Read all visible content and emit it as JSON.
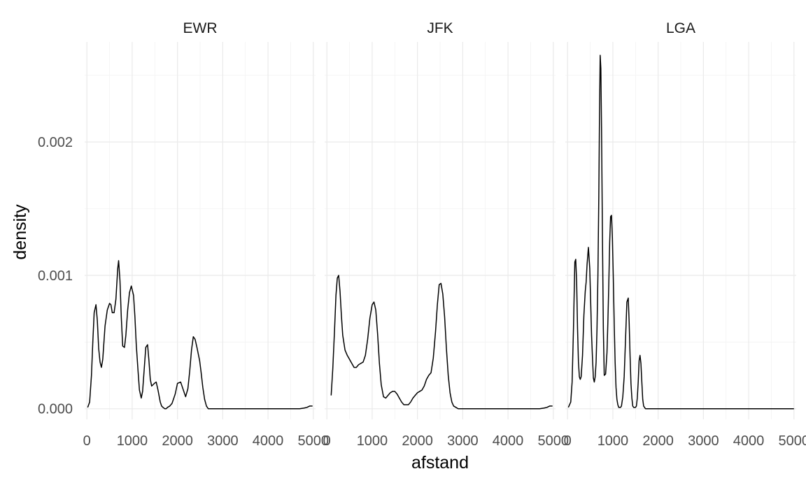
{
  "chart_data": {
    "type": "line",
    "xlabel": "afstand",
    "ylabel": "density",
    "xlim": [
      -50,
      5050
    ],
    "ylim": [
      -8e-05,
      0.00275
    ],
    "x_ticks": [
      0,
      1000,
      2000,
      3000,
      4000,
      5000
    ],
    "x_tick_labels": [
      "0",
      "1000",
      "2000",
      "3000",
      "4000",
      "5000"
    ],
    "y_ticks": [
      0,
      0.001,
      0.002
    ],
    "y_tick_labels": [
      "0.000",
      "0.001",
      "0.002"
    ],
    "grid": true,
    "facets": [
      {
        "label": "EWR",
        "x": [
          17,
          60,
          100,
          130,
          160,
          200,
          230,
          260,
          290,
          320,
          350,
          400,
          450,
          500,
          530,
          560,
          600,
          640,
          680,
          700,
          730,
          760,
          790,
          830,
          860,
          900,
          940,
          980,
          1030,
          1060,
          1090,
          1130,
          1160,
          1200,
          1230,
          1260,
          1300,
          1340,
          1370,
          1400,
          1430,
          1460,
          1490,
          1530,
          1570,
          1620,
          1650,
          1680,
          1720,
          1750,
          1780,
          1830,
          1880,
          1950,
          2000,
          2070,
          2130,
          2180,
          2230,
          2270,
          2310,
          2350,
          2390,
          2430,
          2460,
          2490,
          2520,
          2560,
          2600,
          2640,
          2680,
          2720,
          2760,
          2800,
          2850,
          2900,
          3000,
          3500,
          4000,
          4500,
          4700,
          4800,
          4860,
          4920,
          4983
        ],
        "y": [
          1e-05,
          5e-05,
          0.00025,
          0.0005,
          0.00072,
          0.00078,
          0.00066,
          0.00045,
          0.00035,
          0.00031,
          0.00037,
          0.00062,
          0.00074,
          0.00079,
          0.00078,
          0.00072,
          0.00072,
          0.00082,
          0.00105,
          0.00111,
          0.00096,
          0.00068,
          0.00047,
          0.00046,
          0.00055,
          0.00074,
          0.00087,
          0.00092,
          0.00085,
          0.00069,
          0.00048,
          0.00028,
          0.00014,
          8e-05,
          0.00013,
          0.00027,
          0.00046,
          0.00048,
          0.00036,
          0.00022,
          0.00017,
          0.00018,
          0.00019,
          0.0002,
          0.00014,
          5e-05,
          2e-05,
          1e-05,
          0.0,
          0.0,
          1e-05,
          2e-05,
          4e-05,
          0.00011,
          0.00019,
          0.0002,
          0.00014,
          9e-05,
          0.00015,
          0.00028,
          0.00044,
          0.00054,
          0.00052,
          0.00046,
          0.00041,
          0.00036,
          0.00028,
          0.00016,
          7e-05,
          2e-05,
          0.0,
          0.0,
          0.0,
          0.0,
          0.0,
          0.0,
          0.0,
          0.0,
          0.0,
          0.0,
          0.0,
          5e-06,
          1e-05,
          2e-05,
          2e-05
        ]
      },
      {
        "label": "JFK",
        "x": [
          94,
          130,
          170,
          200,
          230,
          260,
          290,
          320,
          350,
          400,
          450,
          500,
          550,
          600,
          650,
          700,
          750,
          800,
          850,
          900,
          950,
          1000,
          1040,
          1080,
          1120,
          1160,
          1200,
          1250,
          1300,
          1350,
          1400,
          1450,
          1500,
          1550,
          1600,
          1650,
          1700,
          1750,
          1800,
          1850,
          1900,
          1950,
          2000,
          2050,
          2100,
          2150,
          2200,
          2250,
          2300,
          2350,
          2400,
          2440,
          2480,
          2520,
          2560,
          2600,
          2640,
          2680,
          2720,
          2760,
          2800,
          2850,
          2900,
          3000,
          3500,
          4000,
          4500,
          4700,
          4800,
          4860,
          4920,
          4983
        ],
        "y": [
          0.0001,
          0.0003,
          0.0006,
          0.00085,
          0.00098,
          0.001,
          0.00088,
          0.0007,
          0.00055,
          0.00044,
          0.0004,
          0.00037,
          0.00034,
          0.00031,
          0.00031,
          0.00033,
          0.00034,
          0.00035,
          0.0004,
          0.00052,
          0.00068,
          0.00078,
          0.0008,
          0.00074,
          0.00056,
          0.00034,
          0.00018,
          9e-05,
          8e-05,
          0.0001,
          0.00012,
          0.00013,
          0.00013,
          0.00011,
          8e-05,
          5e-05,
          3e-05,
          3e-05,
          3e-05,
          5e-05,
          8e-05,
          0.0001,
          0.00012,
          0.00013,
          0.00014,
          0.00017,
          0.00022,
          0.00025,
          0.00027,
          0.00038,
          0.00058,
          0.00078,
          0.00093,
          0.00094,
          0.00086,
          0.00069,
          0.00045,
          0.00025,
          0.00012,
          5e-05,
          2e-05,
          1e-05,
          0.0,
          0.0,
          0.0,
          0.0,
          0.0,
          0.0,
          5e-06,
          1e-05,
          2e-05,
          2e-05
        ]
      },
      {
        "label": "LGA",
        "x": [
          17,
          70,
          100,
          130,
          160,
          180,
          200,
          220,
          240,
          260,
          280,
          300,
          330,
          360,
          390,
          410,
          430,
          460,
          490,
          510,
          530,
          550,
          570,
          590,
          610,
          630,
          650,
          670,
          690,
          705,
          720,
          735,
          750,
          770,
          790,
          810,
          840,
          870,
          890,
          910,
          930,
          950,
          970,
          990,
          1010,
          1030,
          1050,
          1070,
          1090,
          1110,
          1130,
          1150,
          1170,
          1190,
          1220,
          1250,
          1280,
          1310,
          1340,
          1360,
          1380,
          1400,
          1420,
          1440,
          1460,
          1480,
          1500,
          1520,
          1540,
          1560,
          1580,
          1600,
          1620,
          1640,
          1660,
          1680,
          1720,
          1800,
          2000,
          3000,
          4000,
          5000
        ],
        "y": [
          1e-05,
          5e-05,
          0.0002,
          0.0006,
          0.0011,
          0.00112,
          0.00095,
          0.0006,
          0.00035,
          0.00024,
          0.00022,
          0.00024,
          0.0004,
          0.0007,
          0.00088,
          0.00095,
          0.00108,
          0.00121,
          0.00105,
          0.0008,
          0.00055,
          0.00038,
          0.00023,
          0.0002,
          0.00024,
          0.00035,
          0.0006,
          0.001,
          0.0016,
          0.0022,
          0.00265,
          0.00255,
          0.0021,
          0.0013,
          0.0006,
          0.00025,
          0.00026,
          0.00042,
          0.00065,
          0.00093,
          0.00125,
          0.00144,
          0.00145,
          0.00128,
          0.00098,
          0.00064,
          0.00035,
          0.00016,
          7e-05,
          3e-05,
          1e-05,
          1e-05,
          1e-05,
          2e-05,
          9e-05,
          0.00024,
          0.00052,
          0.0008,
          0.00083,
          0.00065,
          0.0004,
          0.00019,
          8e-05,
          2e-05,
          1e-05,
          1e-05,
          1e-05,
          2e-05,
          8e-05,
          0.0002,
          0.00036,
          0.0004,
          0.00034,
          0.0002,
          7e-05,
          2e-05,
          0.0,
          0.0,
          0.0,
          0.0,
          0.0,
          0.0
        ]
      }
    ]
  }
}
